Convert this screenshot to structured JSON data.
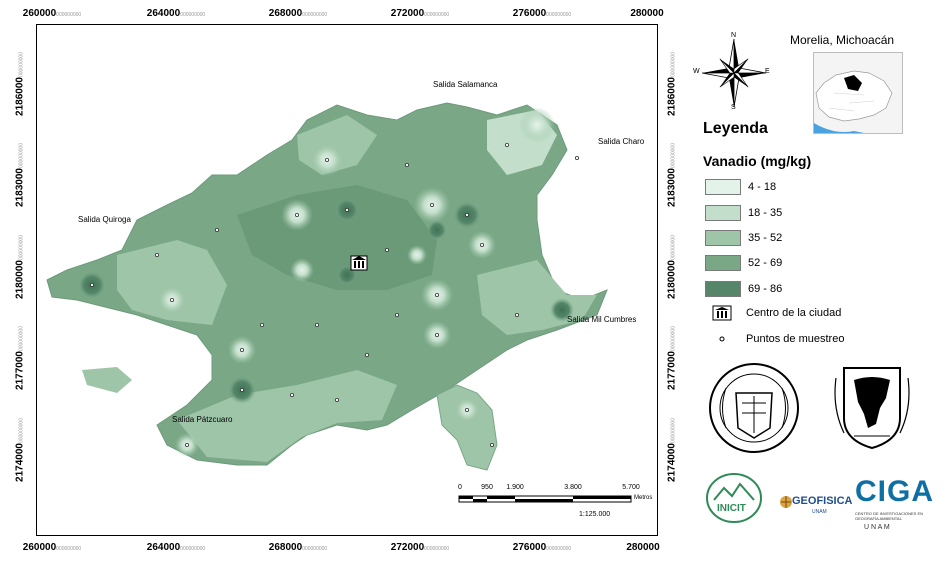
{
  "axes": {
    "x_ticks": [
      {
        "label": "260000",
        "sub": "000000000"
      },
      {
        "label": "264000",
        "sub": "000000000"
      },
      {
        "label": "268000",
        "sub": "000000000"
      },
      {
        "label": "272000",
        "sub": "000000000"
      },
      {
        "label": "276000",
        "sub": "000000000"
      },
      {
        "label": "280000",
        "sub": "000000000"
      }
    ],
    "y_ticks": [
      {
        "label": "2186000",
        "sub": "000000000"
      },
      {
        "label": "2183000",
        "sub": "000000000"
      },
      {
        "label": "2180000",
        "sub": "000000000"
      },
      {
        "label": "2177000",
        "sub": "000000000"
      },
      {
        "label": "2174000",
        "sub": "000000000"
      }
    ]
  },
  "places": {
    "salamanca": "Salida Salamanca",
    "charo": "Salida Charo",
    "quiroga": "Salida Quiroga",
    "mil_cumbres": "Salida Mil Cumbres",
    "patzcuaro": "Salida Pátzcuaro"
  },
  "compass": {
    "n": "N",
    "s": "S",
    "e": "E",
    "w": "W"
  },
  "location": {
    "title": "Morelia, Michoacán"
  },
  "legend": {
    "title": "Leyenda",
    "subtitle": "Vanadio (mg/kg)",
    "classes": [
      {
        "label": "4 - 18",
        "color": "#e4f3ea"
      },
      {
        "label": "18 - 35",
        "color": "#c3dfcb"
      },
      {
        "label": "35 - 52",
        "color": "#9ec5a8"
      },
      {
        "label": "52 - 69",
        "color": "#7aa887"
      },
      {
        "label": "69 - 86",
        "color": "#55866a"
      }
    ],
    "city_center": "Centro de la ciudad",
    "sample_points": "Puntos de muestreo"
  },
  "scalebar": {
    "ticks": [
      "0",
      "950",
      "1.900",
      "3.800",
      "5.700"
    ],
    "unit": "Metros",
    "ratio": "1:125.000"
  },
  "logos": {
    "inicit": "INICIT",
    "geofisica": "GEOFISICA",
    "geofisica_sub": "UNAM",
    "ciga": "CIGA",
    "ciga_sub": "CENTRO DE INVESTIGACIONES EN GEOGRAFÍA AMBIENTAL",
    "ciga_unam": "U N A M"
  }
}
